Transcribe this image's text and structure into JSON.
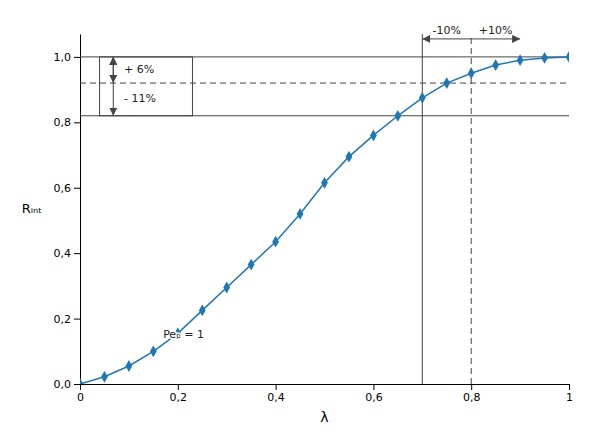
{
  "chart_data": {
    "type": "line",
    "x": [
      0.0,
      0.05,
      0.1,
      0.15,
      0.2,
      0.25,
      0.3,
      0.35,
      0.4,
      0.45,
      0.5,
      0.55,
      0.6,
      0.65,
      0.7,
      0.75,
      0.8,
      0.85,
      0.9,
      0.95,
      1.0
    ],
    "values": [
      0.0,
      0.022,
      0.055,
      0.1,
      0.155,
      0.225,
      0.295,
      0.365,
      0.435,
      0.52,
      0.615,
      0.695,
      0.76,
      0.82,
      0.875,
      0.92,
      0.95,
      0.975,
      0.99,
      0.997,
      1.0
    ],
    "marker": "diamond",
    "xlabel": "λ",
    "ylabel": "Rᵢₙₜ",
    "xlim": [
      0,
      1.0
    ],
    "ylim": [
      0,
      1.07
    ],
    "xticks": [
      0,
      {
        "value": 0.2,
        "label": "0,2"
      },
      {
        "value": 0.4,
        "label": "0,4"
      },
      {
        "value": 0.6,
        "label": "0,6"
      },
      {
        "value": 0.8,
        "label": "0,8"
      },
      1
    ],
    "yticks": [
      {
        "value": 0.0,
        "label": "0,0"
      },
      {
        "value": 0.2,
        "label": "0,2"
      },
      {
        "value": 0.4,
        "label": "0,4"
      },
      {
        "value": 0.6,
        "label": "0,6"
      },
      {
        "value": 0.8,
        "label": "0,8"
      },
      {
        "value": 1.0,
        "label": "1,0"
      }
    ],
    "grid": false,
    "reference_lines": [
      {
        "axis": "y",
        "value": 1.0,
        "line_style": "solid"
      },
      {
        "axis": "y",
        "value": 0.82,
        "line_style": "solid"
      },
      {
        "axis": "y",
        "value": 0.92,
        "line_style": "dashed"
      },
      {
        "axis": "x",
        "value": 0.7,
        "line_style": "solid"
      },
      {
        "axis": "x",
        "value": 0.8,
        "line_style": "dashed"
      }
    ],
    "box": {
      "x": [
        0.04,
        0.23
      ],
      "y": [
        0.82,
        1.0
      ]
    },
    "arrows": [
      {
        "x": [
          0.068,
          0.068
        ],
        "y": [
          0.82,
          1.0
        ],
        "marker": "both"
      },
      {
        "x": [
          0.068,
          0.068
        ],
        "y": [
          0.92,
          1.0
        ],
        "marker": "both"
      },
      {
        "x": [
          0.8,
          0.7
        ],
        "y": [
          1.055,
          1.055
        ],
        "marker": "end"
      },
      {
        "x": [
          0.8,
          0.9
        ],
        "y": [
          1.055,
          1.055
        ],
        "marker": "end"
      }
    ],
    "annotations": [
      {
        "text": "Peₚ = 1",
        "x": 0.17,
        "y": 0.15
      },
      {
        "text": "+ 6%",
        "x": 0.09,
        "y": 0.96
      },
      {
        "text": "- 11%",
        "x": 0.09,
        "y": 0.87
      },
      {
        "text": "-10%",
        "x": 0.75,
        "y": 1.071
      },
      {
        "text": "+10%",
        "x": 0.85,
        "y": 1.071
      }
    ]
  }
}
